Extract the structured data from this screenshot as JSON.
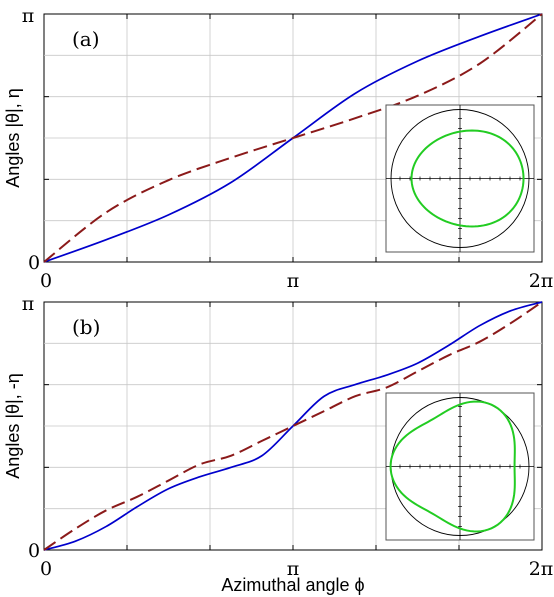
{
  "chart_data": [
    {
      "type": "line",
      "panel_label": "(a)",
      "ylabel": "Angles |θ|, η",
      "xlabel": "",
      "xlim_pi": [
        0,
        2
      ],
      "ylim_pi": [
        0,
        1
      ],
      "x_tick_labels": [
        "0",
        "π",
        "2π"
      ],
      "y_tick_labels": [
        "0",
        "π"
      ],
      "grid": true,
      "series": [
        {
          "style": "solid",
          "color": "#0000cc",
          "x_pi": [
            0,
            0.25,
            0.5,
            0.75,
            1,
            1.25,
            1.5,
            1.75,
            2
          ],
          "y_pi": [
            0,
            0.09,
            0.19,
            0.32,
            0.5,
            0.68,
            0.81,
            0.91,
            1
          ]
        },
        {
          "style": "dashed",
          "color": "#8b1a1a",
          "x_pi": [
            0,
            0.25,
            0.5,
            0.75,
            1,
            1.25,
            1.5,
            1.75,
            2
          ],
          "y_pi": [
            0,
            0.2,
            0.33,
            0.42,
            0.5,
            0.58,
            0.67,
            0.8,
            1
          ]
        }
      ],
      "inset": {
        "type": "polar-curve",
        "color": "#22cc22",
        "outer_circle_color": "#000000",
        "shape": "offset-oval"
      }
    },
    {
      "type": "line",
      "panel_label": "(b)",
      "ylabel": "Angles |θ|, -η",
      "xlabel": "Azimuthal angle ϕ",
      "xlim_pi": [
        0,
        2
      ],
      "ylim_pi": [
        0,
        1
      ],
      "x_tick_labels": [
        "0",
        "π",
        "2π"
      ],
      "y_tick_labels": [
        "0",
        "π"
      ],
      "grid": true,
      "series": [
        {
          "style": "solid",
          "color": "#0000cc",
          "x_pi": [
            0,
            0.125,
            0.25,
            0.375,
            0.5,
            0.625,
            0.75,
            0.875,
            1,
            1.125,
            1.25,
            1.375,
            1.5,
            1.625,
            1.75,
            1.875,
            2
          ],
          "y_pi": [
            0,
            0.035,
            0.095,
            0.175,
            0.247,
            0.295,
            0.333,
            0.38,
            0.5,
            0.62,
            0.667,
            0.705,
            0.753,
            0.825,
            0.905,
            0.965,
            1
          ]
        },
        {
          "style": "dashed",
          "color": "#8b1a1a",
          "x_pi": [
            0,
            0.125,
            0.25,
            0.375,
            0.5,
            0.625,
            0.75,
            0.875,
            1,
            1.125,
            1.25,
            1.375,
            1.5,
            1.625,
            1.75,
            1.875,
            2
          ],
          "y_pi": [
            0,
            0.085,
            0.16,
            0.215,
            0.28,
            0.345,
            0.38,
            0.44,
            0.5,
            0.56,
            0.62,
            0.655,
            0.72,
            0.785,
            0.84,
            0.915,
            1
          ]
        }
      ],
      "inset": {
        "type": "polar-curve",
        "color": "#22cc22",
        "outer_circle_color": "#000000",
        "shape": "rounded-triangle"
      }
    }
  ]
}
